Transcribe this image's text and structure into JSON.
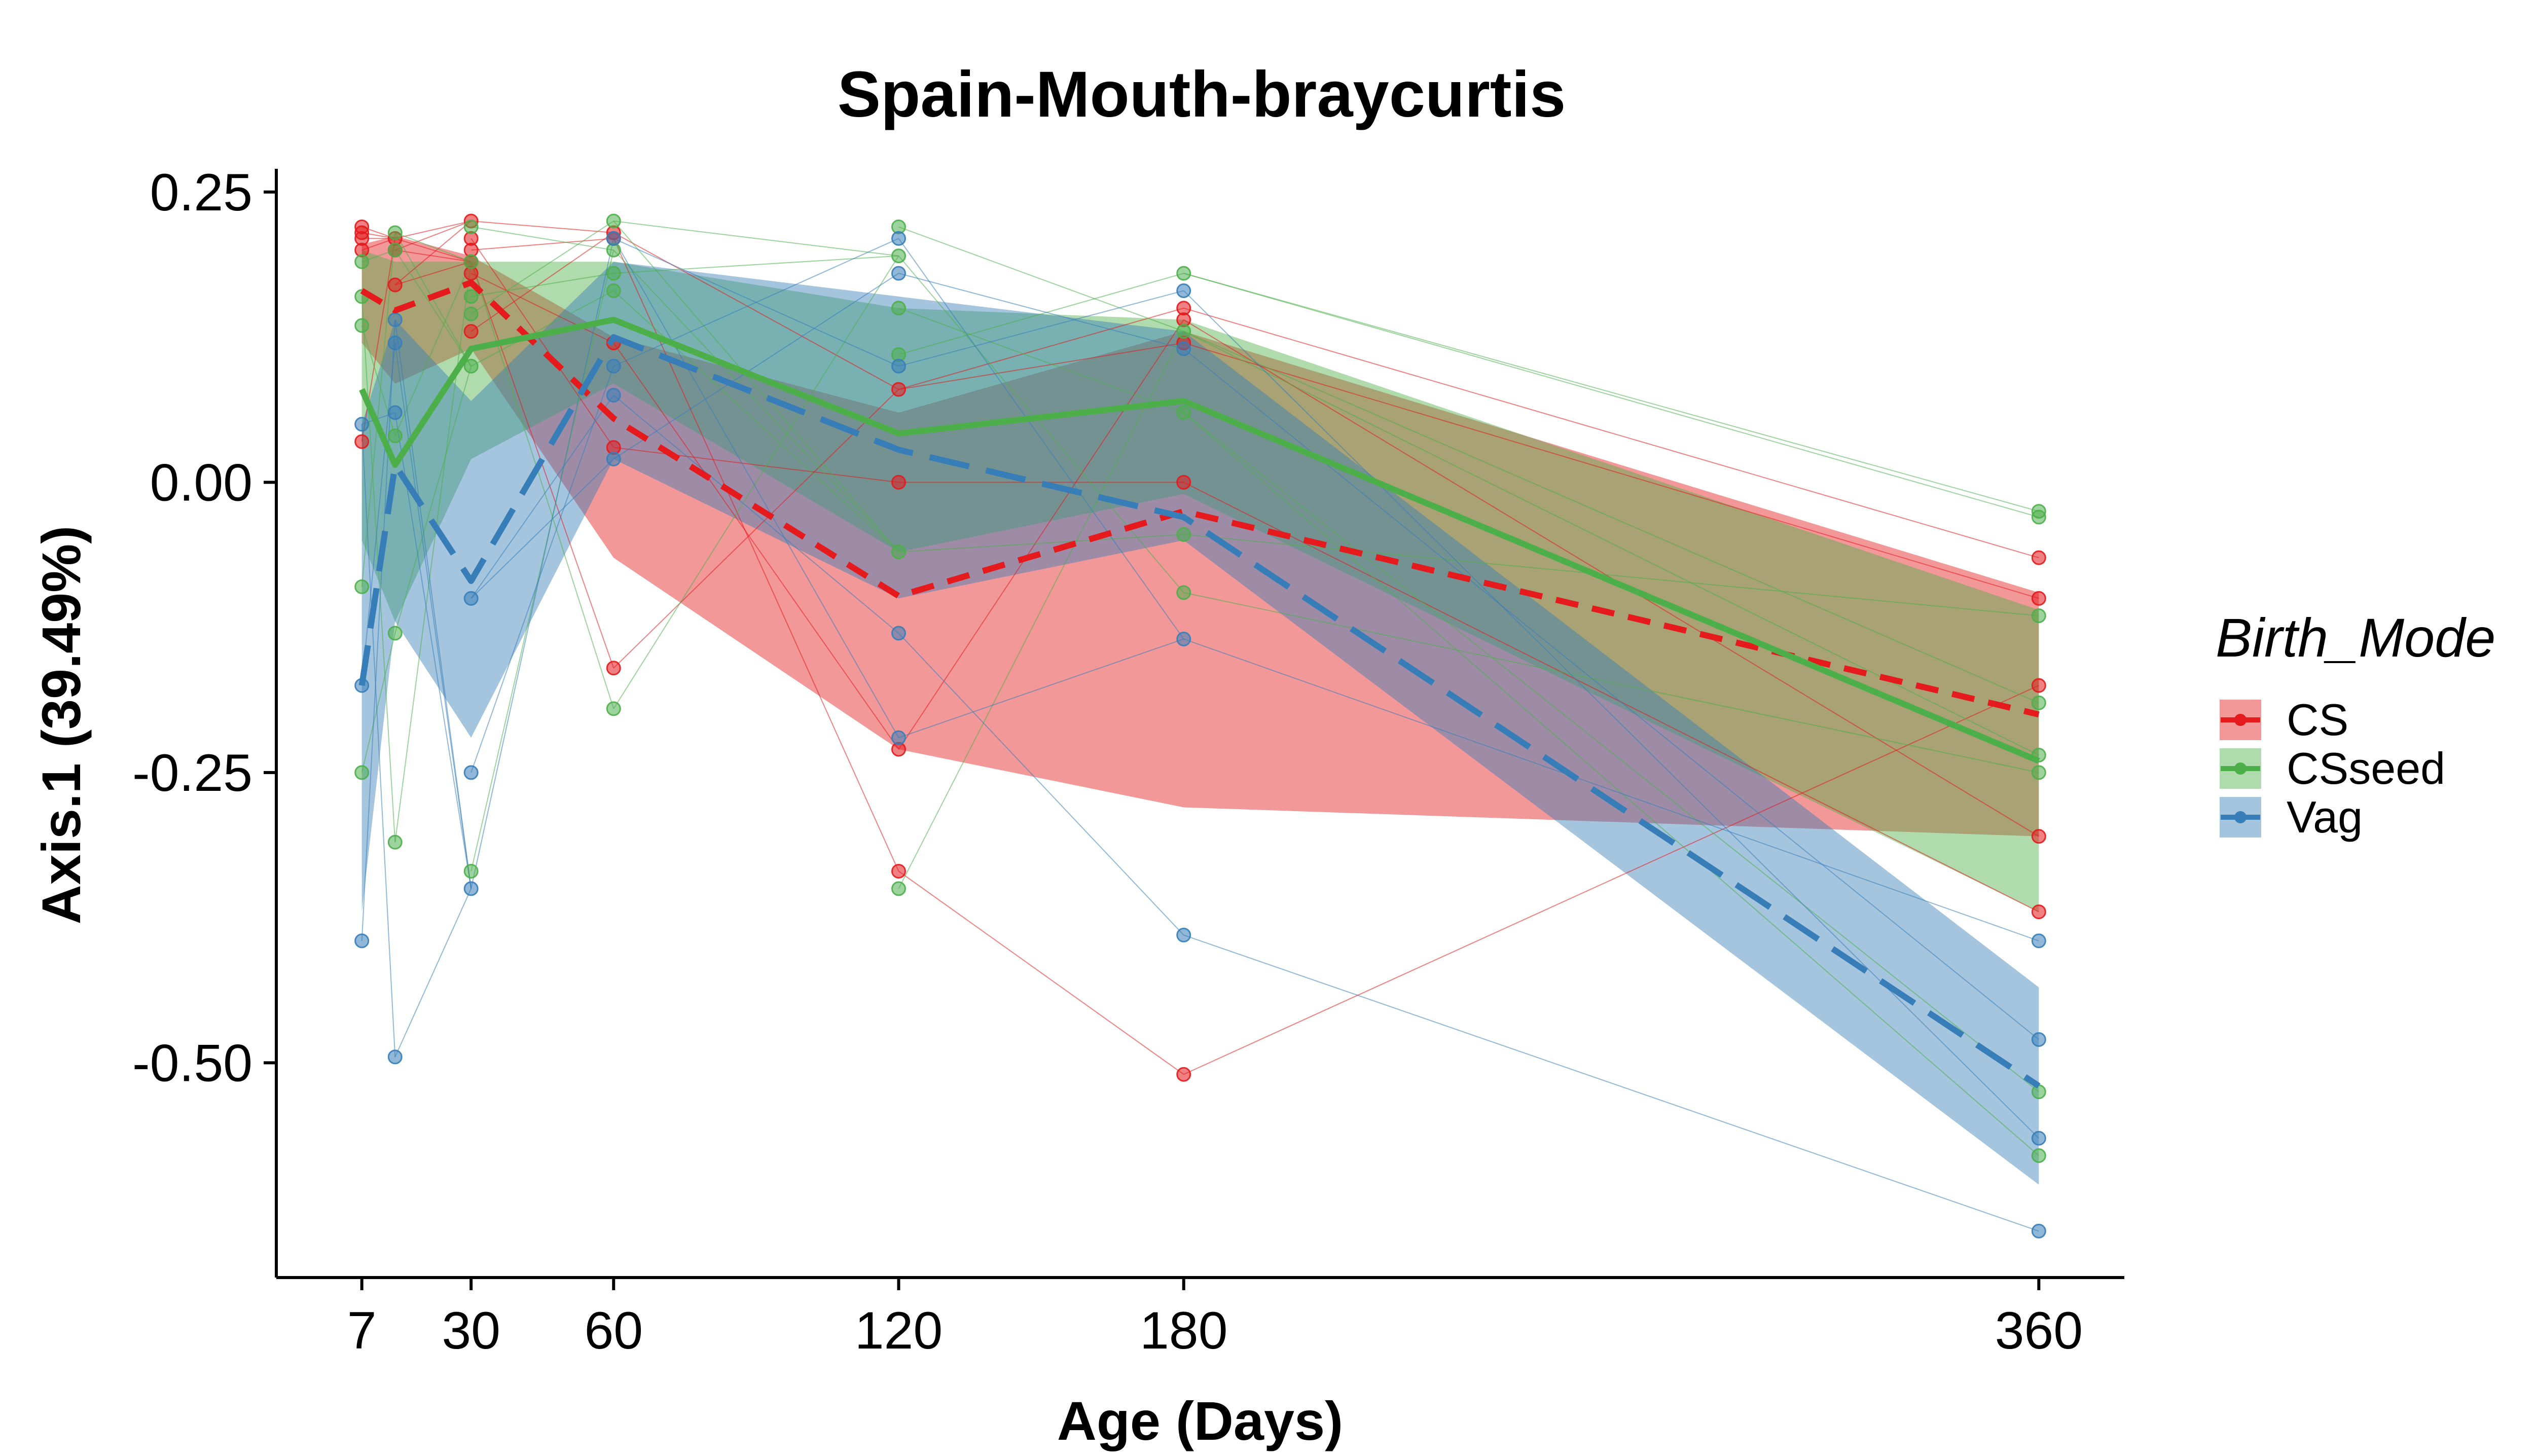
{
  "chart_data": {
    "type": "line",
    "title": "Spain-Mouth-braycurtis",
    "xlabel": "Age (Days)",
    "ylabel": "Axis.1 (39.49%)",
    "x_ticks": [
      7,
      30,
      60,
      120,
      180,
      360
    ],
    "y_ticks": [
      0.25,
      0.0,
      -0.25,
      -0.5
    ],
    "y_tick_labels": [
      "0.25",
      "0.00",
      "-0.25",
      "-0.50"
    ],
    "xlim": [
      -11,
      378
    ],
    "ylim": [
      -0.685,
      0.27
    ],
    "grid": false,
    "legend": {
      "title": "Birth_Mode",
      "position": "right"
    },
    "series": [
      {
        "name": "CS",
        "color": "#e41a1c",
        "line_style": "dashed",
        "x": [
          7,
          14,
          30,
          60,
          120,
          180,
          360
        ],
        "mean": [
          0.165,
          0.148,
          0.172,
          0.055,
          -0.098,
          -0.025,
          -0.2
        ],
        "ribbon_upper": [
          0.205,
          0.212,
          0.195,
          0.125,
          0.06,
          0.13,
          -0.095
        ],
        "ribbon_lower": [
          0.12,
          0.085,
          0.115,
          -0.065,
          -0.23,
          -0.28,
          -0.305
        ],
        "points": [
          [
            7,
            0.22
          ],
          [
            7,
            0.215
          ],
          [
            7,
            0.21
          ],
          [
            7,
            0.2
          ],
          [
            7,
            0.035
          ],
          [
            14,
            0.21
          ],
          [
            14,
            0.2
          ],
          [
            14,
            0.17
          ],
          [
            30,
            0.225
          ],
          [
            30,
            0.21
          ],
          [
            30,
            0.2
          ],
          [
            30,
            0.19
          ],
          [
            30,
            0.18
          ],
          [
            30,
            0.13
          ],
          [
            60,
            0.215
          ],
          [
            60,
            0.21
          ],
          [
            60,
            0.12
          ],
          [
            60,
            0.03
          ],
          [
            60,
            -0.16
          ],
          [
            120,
            0.08
          ],
          [
            120,
            0.0
          ],
          [
            120,
            -0.23
          ],
          [
            120,
            -0.335
          ],
          [
            180,
            0.15
          ],
          [
            180,
            0.14
          ],
          [
            180,
            0.12
          ],
          [
            180,
            0.0
          ],
          [
            180,
            -0.51
          ],
          [
            360,
            -0.065
          ],
          [
            360,
            -0.1
          ],
          [
            360,
            -0.175
          ],
          [
            360,
            -0.305
          ],
          [
            360,
            -0.37
          ]
        ]
      },
      {
        "name": "CSseed",
        "color": "#4daf4a",
        "line_style": "solid",
        "x": [
          7,
          14,
          30,
          60,
          120,
          180,
          360
        ],
        "mean": [
          0.08,
          0.015,
          0.115,
          0.14,
          0.042,
          0.07,
          -0.24
        ],
        "ribbon_upper": [
          0.2,
          0.19,
          0.19,
          0.19,
          0.15,
          0.14,
          -0.11
        ],
        "ribbon_lower": [
          -0.05,
          -0.12,
          0.02,
          0.085,
          -0.06,
          -0.01,
          -0.37
        ],
        "points": [
          [
            7,
            0.19
          ],
          [
            7,
            0.16
          ],
          [
            7,
            0.135
          ],
          [
            7,
            -0.09
          ],
          [
            7,
            -0.25
          ],
          [
            14,
            0.215
          ],
          [
            14,
            0.2
          ],
          [
            14,
            0.04
          ],
          [
            14,
            -0.13
          ],
          [
            14,
            -0.31
          ],
          [
            30,
            0.22
          ],
          [
            30,
            0.19
          ],
          [
            30,
            0.16
          ],
          [
            30,
            0.145
          ],
          [
            30,
            0.1
          ],
          [
            30,
            -0.335
          ],
          [
            60,
            0.225
          ],
          [
            60,
            0.2
          ],
          [
            60,
            0.18
          ],
          [
            60,
            0.165
          ],
          [
            60,
            -0.195
          ],
          [
            120,
            0.22
          ],
          [
            120,
            0.195
          ],
          [
            120,
            0.15
          ],
          [
            120,
            0.11
          ],
          [
            120,
            -0.06
          ],
          [
            120,
            -0.35
          ],
          [
            180,
            0.18
          ],
          [
            180,
            0.13
          ],
          [
            180,
            0.06
          ],
          [
            180,
            -0.045
          ],
          [
            180,
            -0.095
          ],
          [
            360,
            -0.025
          ],
          [
            360,
            -0.03
          ],
          [
            360,
            -0.115
          ],
          [
            360,
            -0.19
          ],
          [
            360,
            -0.235
          ],
          [
            360,
            -0.25
          ],
          [
            360,
            -0.525
          ],
          [
            360,
            -0.58
          ]
        ]
      },
      {
        "name": "Vag",
        "color": "#377eb8",
        "line_style": "longdash",
        "x": [
          7,
          14,
          30,
          60,
          120,
          180,
          360
        ],
        "mean": [
          -0.175,
          0.015,
          -0.085,
          0.125,
          0.028,
          -0.03,
          -0.52
        ],
        "ribbon_upper": [
          0.05,
          0.14,
          0.07,
          0.19,
          0.16,
          0.13,
          -0.435
        ],
        "ribbon_lower": [
          -0.37,
          -0.12,
          -0.22,
          0.02,
          -0.1,
          -0.05,
          -0.605
        ],
        "points": [
          [
            7,
            0.05
          ],
          [
            7,
            -0.175
          ],
          [
            7,
            -0.395
          ],
          [
            14,
            0.14
          ],
          [
            14,
            0.12
          ],
          [
            14,
            0.06
          ],
          [
            14,
            -0.495
          ],
          [
            30,
            -0.1
          ],
          [
            30,
            -0.25
          ],
          [
            30,
            -0.35
          ],
          [
            60,
            0.21
          ],
          [
            60,
            0.1
          ],
          [
            60,
            0.075
          ],
          [
            60,
            0.02
          ],
          [
            120,
            0.21
          ],
          [
            120,
            0.18
          ],
          [
            120,
            0.1
          ],
          [
            120,
            -0.13
          ],
          [
            120,
            -0.22
          ],
          [
            180,
            0.165
          ],
          [
            180,
            0.115
          ],
          [
            180,
            -0.135
          ],
          [
            180,
            -0.39
          ],
          [
            360,
            -0.395
          ],
          [
            360,
            -0.48
          ],
          [
            360,
            -0.565
          ],
          [
            360,
            -0.645
          ]
        ]
      }
    ]
  }
}
